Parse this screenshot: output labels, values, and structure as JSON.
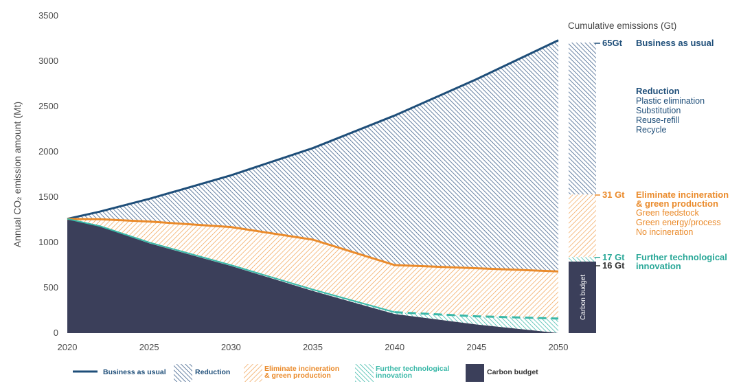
{
  "chart_data": {
    "type": "area",
    "title": "",
    "ylabel": "Annual CO₂ emission amount (Mt)",
    "xlabel": "",
    "xlim": [
      2020,
      2050
    ],
    "ylim": [
      0,
      3500
    ],
    "x_ticks": [
      "2020",
      "2025",
      "2030",
      "2035",
      "2040",
      "2045",
      "2050"
    ],
    "y_ticks": [
      "0",
      "500",
      "1000",
      "1500",
      "2000",
      "2500",
      "3000",
      "3500"
    ],
    "x": [
      2020,
      2022,
      2025,
      2030,
      2035,
      2040,
      2045,
      2050
    ],
    "series": [
      {
        "name": "Business as usual",
        "values": [
          1260,
          1340,
          1480,
          1740,
          2040,
          2400,
          2800,
          3230
        ]
      },
      {
        "name": "Eliminate incineration & green production",
        "values": [
          1260,
          1255,
          1230,
          1170,
          1030,
          750,
          715,
          680
        ]
      },
      {
        "name": "Further technological innovation",
        "values": [
          1260,
          1180,
          1000,
          750,
          480,
          230,
          185,
          160
        ]
      },
      {
        "name": "Carbon budget",
        "values": [
          1260,
          1175,
          990,
          740,
          465,
          210,
          95,
          0
        ]
      }
    ],
    "colors": {
      "business": "#1e4e79",
      "reduction": "#3d5f8a",
      "eliminate": "#f0a050",
      "eliminate_line": "#ea8a2a",
      "further": "#3ab8a8",
      "budget": "#3b3f5a"
    },
    "cumulative": {
      "heading": "Cumulative emissions (Gt)",
      "bar_label": "Carbon budget",
      "levels": [
        {
          "key": "business",
          "value": 65,
          "label": "65Gt",
          "color": "#1e4e79",
          "title": "Business as usual",
          "lines": []
        },
        {
          "key": "eliminate",
          "value": 31,
          "label": "31 Gt",
          "color": "#ea8a2a",
          "title": "Eliminate incineration",
          "lines": [
            "& green production"
          ]
        },
        {
          "key": "further",
          "value": 17,
          "label": "17 Gt",
          "color": "#2aa898",
          "title": "Further technological",
          "lines": [
            "innovation"
          ]
        },
        {
          "key": "budget",
          "value": 16,
          "label": "16 Gt",
          "color": "#333333",
          "title": "",
          "lines": []
        }
      ],
      "reduction_block": {
        "title": "Reduction",
        "items": [
          "Plastic elimination",
          "Substitution",
          "Reuse-refill",
          "Recycle"
        ],
        "color": "#1e4e79"
      },
      "eliminate_items": [
        "Green feedstock",
        "Green energy/process",
        "No incineration"
      ]
    },
    "legend": [
      {
        "key": "line",
        "label": "Business as usual"
      },
      {
        "key": "reduction",
        "label": "Reduction"
      },
      {
        "key": "eliminate",
        "label": "Eliminate incineration & green production"
      },
      {
        "key": "further",
        "label": "Further technological innovation"
      },
      {
        "key": "budget",
        "label": "Carbon budget"
      }
    ],
    "legend_position": "bottom",
    "grid": false
  }
}
